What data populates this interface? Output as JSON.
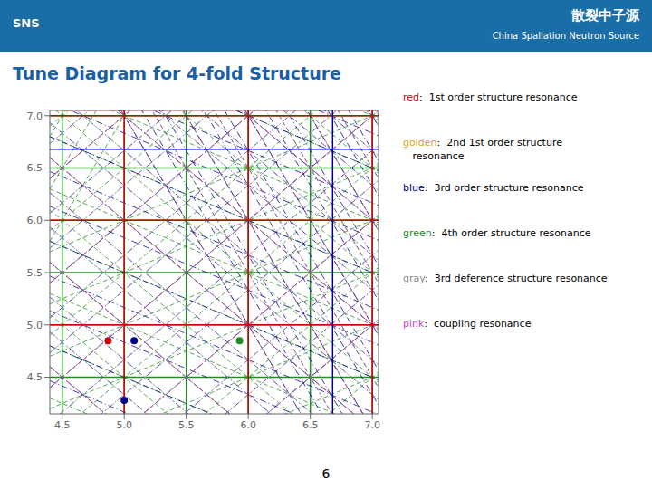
{
  "chart_data": {
    "type": "scatter",
    "title": "Tune Diagram for 4-fold Structure",
    "title_color": "#1a5fa8",
    "header_color": "#1a6ea8",
    "header_text": "散裂中子源",
    "header_subtext": "China Spallation Neutron Source",
    "logo_text": "SNS",
    "page_number": "6",
    "xlim": [
      4.4,
      7.05
    ],
    "ylim": [
      4.15,
      7.05
    ],
    "xticks": [
      4.5,
      {
        "value": 5.0,
        "label": "5.0"
      },
      5.5,
      {
        "value": 6.0,
        "label": "6.0"
      },
      6.5,
      {
        "value": 7.0,
        "label": "7.0"
      }
    ],
    "yticks": [
      4.5,
      {
        "value": 5.0,
        "label": "5.0"
      },
      5.5,
      {
        "value": 6.0,
        "label": "6.0"
      },
      6.5,
      {
        "value": 7.0,
        "label": "7.0"
      }
    ],
    "x": [
      4.87,
      5.08,
      5.93,
      5.0
    ],
    "values": [
      4.85,
      4.85,
      4.85,
      4.28
    ],
    "colors": [
      "#cc0000",
      "#00008b",
      "#228b22",
      "#00008b"
    ],
    "lines": [
      {
        "color": "#228b22",
        "line_style": "solid",
        "vlines": [
          4.5,
          5.0,
          5.5,
          6.0,
          6.5,
          7.0
        ]
      },
      {
        "color": "#228b22",
        "line_style": "solid",
        "hlines": [
          4.5,
          5.0,
          5.5,
          6.0,
          6.5,
          7.0
        ]
      },
      {
        "color": "#228b22",
        "line_style": "dashed",
        "slope": -1,
        "intercepts": [
          9.0,
          9.5,
          10.0,
          10.5,
          11.0,
          11.5,
          12.0,
          12.5,
          13.0,
          13.5,
          14.0
        ]
      },
      {
        "color": "#228b22",
        "line_style": "dashed",
        "slope": 1,
        "intercepts": [
          -2.5,
          -2.0,
          -1.5,
          -1.0,
          -0.5,
          0.0,
          0.5,
          1.0,
          1.5,
          2.0,
          2.5
        ]
      },
      {
        "color": "#228b22",
        "line_style": "dashed",
        "slope": -2,
        "intercepts": [
          17.0,
          17.5,
          18.0,
          18.5,
          19.0,
          19.5,
          20.0,
          20.5,
          21.0
        ]
      },
      {
        "color": "#228b22",
        "line_style": "dashed",
        "slope": 2,
        "intercepts": [
          -3.0,
          -2.5,
          -2.0
        ]
      },
      {
        "color": "#228b22",
        "line_style": "dashed",
        "slope": -0.5,
        "intercepts": [
          6.5,
          7.0,
          7.5,
          8.0,
          8.5,
          9.0,
          9.5,
          10.0,
          10.5
        ]
      },
      {
        "color": "#228b22",
        "line_style": "dashed",
        "slope": 0.5,
        "intercepts": [
          1.0,
          1.5,
          2.0,
          2.5,
          3.0,
          3.5
        ]
      },
      {
        "color": "#daa520",
        "line_style": "solid",
        "hlines": [
          6.0
        ]
      },
      {
        "color": "#daa520",
        "line_style": "dashed",
        "slope": -1,
        "intercepts": [
          10.0,
          11.0,
          12.0,
          9.0
        ]
      },
      {
        "color": "#daa520",
        "line_style": "dashed",
        "slope": 1,
        "intercepts": [
          -1.0,
          0.0,
          1.0,
          2.0
        ]
      },
      {
        "color": "#00008b",
        "line_style": "dashdot",
        "slope": -1,
        "intercepts": [
          9.0,
          9.333333333333334,
          9.666666666666666,
          10.0,
          10.333333333333334,
          10.666666666666666,
          11.0,
          11.333333333333334,
          11.666666666666666,
          12.0,
          12.333333333333334,
          12.666666666666666,
          13.0,
          13.333333333333334,
          13.666666666666666,
          14.0
        ]
      },
      {
        "color": "#00008b",
        "line_style": "dashdot",
        "slope": 1,
        "intercepts": [
          -2.0,
          -1.6666666666666667,
          -1.3333333333333335,
          -1.0,
          -0.6666666666666667,
          -0.33333333333333337,
          0.0,
          0.33333333333333326,
          0.6666666666666665,
          1.0,
          1.333333333333333,
          1.6666666666666665,
          2.0,
          2.333333333333333
        ]
      },
      {
        "color": "#00008b",
        "line_style": "dashdot",
        "slope": -2,
        "intercepts": [
          17.0,
          17.333333333333332,
          17.666666666666664,
          18.0,
          18.333333333333332,
          18.666666666666664,
          19.0,
          19.333333333333332,
          19.666666666666664,
          20.0,
          20.333333333333332,
          20.666666666666664,
          21.0
        ]
      },
      {
        "color": "#00008b",
        "line_style": "dashdot",
        "slope": -0.5,
        "intercepts": [
          6.666666666666667,
          7.0,
          7.333333333333333,
          7.666666666666667,
          8.0,
          8.333333333333334,
          8.666666666666668,
          9.0,
          9.333333333333334,
          9.666666666666668,
          10.0,
          10.333333333333334
        ]
      },
      {
        "color": "#aaaaaa",
        "line_style": "dashed",
        "slope": -1,
        "intercepts": [
          9.0,
          9.333333333333334,
          9.666666666666666,
          10.0,
          10.333333333333334,
          10.666666666666666,
          11.0,
          11.333333333333334,
          11.666666666666666,
          12.0,
          12.333333333333334,
          12.666666666666666,
          13.0,
          13.333333333333334,
          13.666666666666666,
          14.0
        ]
      },
      {
        "color": "#aaaaaa",
        "line_style": "dashed",
        "slope": 1,
        "intercepts": [
          -2.0,
          -1.6666666666666667,
          -1.3333333333333335,
          -1.0,
          -0.6666666666666667,
          -0.33333333333333337,
          0.0,
          0.33333333333333326,
          0.6666666666666665,
          1.0,
          1.333333333333333,
          1.6666666666666665,
          2.0,
          2.333333333333333
        ]
      },
      {
        "color": "#bb44bb",
        "line_style": "dashed",
        "slope": 1,
        "intercepts": [
          -2,
          -1,
          0,
          1,
          2
        ]
      },
      {
        "color": "#bb44bb",
        "line_style": "dashed",
        "slope": -1,
        "intercepts": [
          9,
          10,
          11,
          12,
          13
        ]
      },
      {
        "color": "#bb44bb",
        "line_style": "dashed",
        "slope": -2,
        "intercepts": [
          17.0,
          17.5,
          18.0,
          18.5,
          19.0,
          19.5,
          20.0,
          20.5,
          21.0
        ]
      },
      {
        "color": "#cc0000",
        "line_style": "solid",
        "vlines": [
          5,
          6,
          7
        ]
      },
      {
        "color": "#cc0000",
        "line_style": "solid",
        "hlines": [
          5,
          6,
          7
        ]
      },
      {
        "color": "#00008b",
        "line_style": "solid",
        "vlines": [
          6.68
        ]
      },
      {
        "color": "#00008b",
        "line_style": "solid",
        "hlines": [
          6.68
        ]
      }
    ],
    "legend_entries": [
      {
        "label": "red",
        "color": "#cc0000",
        "desc": ":  1st order structure resonance"
      },
      {
        "label": "golden",
        "color": "#daa520",
        "desc": ":  2nd 1st order structure\n   resonance"
      },
      {
        "label": "blue",
        "color": "#00008b",
        "desc": ":  3rd order structure resonance"
      },
      {
        "label": "green",
        "color": "#228b22",
        "desc": ":  4th order structure resonance"
      },
      {
        "label": "gray",
        "color": "#888888",
        "desc": ":  3rd deference structure resonance"
      },
      {
        "label": "pink",
        "color": "#cc44cc",
        "desc": ":  coupling resonance"
      }
    ]
  }
}
